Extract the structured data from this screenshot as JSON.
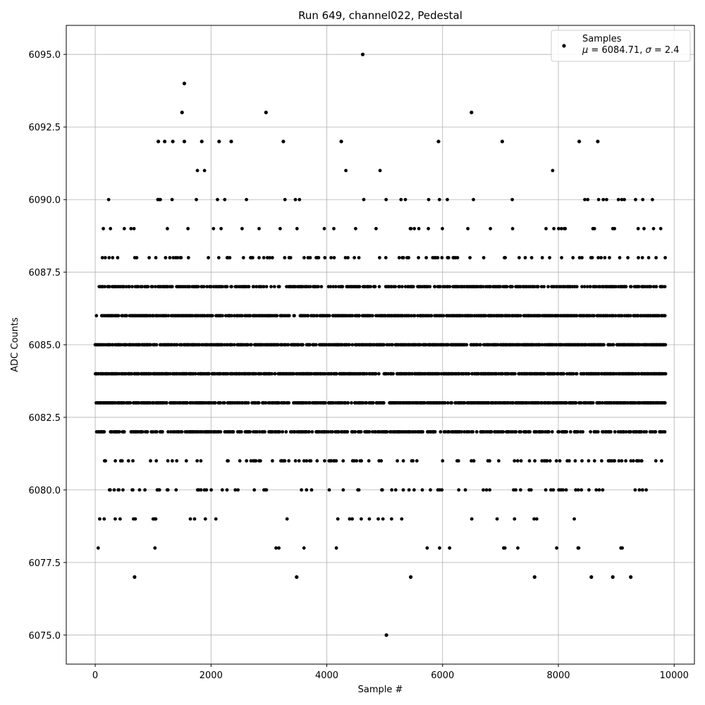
{
  "chart_data": {
    "type": "scatter",
    "title": "Run 649, channel022, Pedestal",
    "xlabel": "Sample #",
    "ylabel": "ADC Counts",
    "xlim": [
      -500,
      10350
    ],
    "ylim": [
      6074.0,
      6096.0
    ],
    "x_ticks": [
      0,
      2000,
      4000,
      6000,
      8000,
      10000
    ],
    "x_tick_labels": [
      "0",
      "2000",
      "4000",
      "6000",
      "8000",
      "10000"
    ],
    "y_ticks": [
      6075.0,
      6077.5,
      6080.0,
      6082.5,
      6085.0,
      6087.5,
      6090.0,
      6092.5,
      6095.0
    ],
    "y_tick_labels": [
      "6075.0",
      "6077.5",
      "6080.0",
      "6082.5",
      "6085.0",
      "6087.5",
      "6090.0",
      "6092.5",
      "6095.0"
    ],
    "grid": true,
    "legend_position": "top-right",
    "legend": {
      "label": "Samples",
      "stats": "μ = 6084.71, σ = 2.4",
      "stats_mu": "μ",
      "stats_mu_value": " = 6084.71, ",
      "stats_sigma": "σ",
      "stats_sigma_value": " = 2.4"
    },
    "marker_color": "#000000",
    "series": [
      {
        "name": "Samples",
        "n_samples": 9850,
        "outliers": [
          {
            "x": 4620,
            "y": 6095
          },
          {
            "x": 1540,
            "y": 6094
          },
          {
            "x": 1500,
            "y": 6093
          },
          {
            "x": 2950,
            "y": 6093
          },
          {
            "x": 6500,
            "y": 6093
          },
          {
            "x": 5030,
            "y": 6075
          },
          {
            "x": 1090,
            "y": 6092
          },
          {
            "x": 1200,
            "y": 6092
          },
          {
            "x": 1340,
            "y": 6092
          },
          {
            "x": 1540,
            "y": 6092
          },
          {
            "x": 1840,
            "y": 6092
          },
          {
            "x": 2140,
            "y": 6092
          },
          {
            "x": 2350,
            "y": 6092
          },
          {
            "x": 3250,
            "y": 6092
          },
          {
            "x": 4250,
            "y": 6092
          },
          {
            "x": 5930,
            "y": 6092
          },
          {
            "x": 7030,
            "y": 6092
          },
          {
            "x": 8360,
            "y": 6092
          },
          {
            "x": 8680,
            "y": 6092
          },
          {
            "x": 680,
            "y": 6077
          },
          {
            "x": 3480,
            "y": 6077
          },
          {
            "x": 5450,
            "y": 6077
          },
          {
            "x": 7590,
            "y": 6077
          },
          {
            "x": 8570,
            "y": 6077
          },
          {
            "x": 8940,
            "y": 6077
          },
          {
            "x": 9250,
            "y": 6077
          }
        ],
        "level_density": [
          {
            "y": 6091,
            "fraction": 0.012
          },
          {
            "y": 6090,
            "fraction": 0.03
          },
          {
            "y": 6089,
            "fraction": 0.07
          },
          {
            "y": 6088,
            "fraction": 0.13
          },
          {
            "y": 6087,
            "fraction": 0.55
          },
          {
            "y": 6086,
            "fraction": 0.7
          },
          {
            "y": 6085,
            "fraction": 0.75
          },
          {
            "y": 6084,
            "fraction": 0.75
          },
          {
            "y": 6083,
            "fraction": 0.7
          },
          {
            "y": 6082,
            "fraction": 0.55
          },
          {
            "y": 6081,
            "fraction": 0.17
          },
          {
            "y": 6080,
            "fraction": 0.11
          },
          {
            "y": 6079,
            "fraction": 0.025
          },
          {
            "y": 6078,
            "fraction": 0.012
          }
        ]
      }
    ]
  }
}
